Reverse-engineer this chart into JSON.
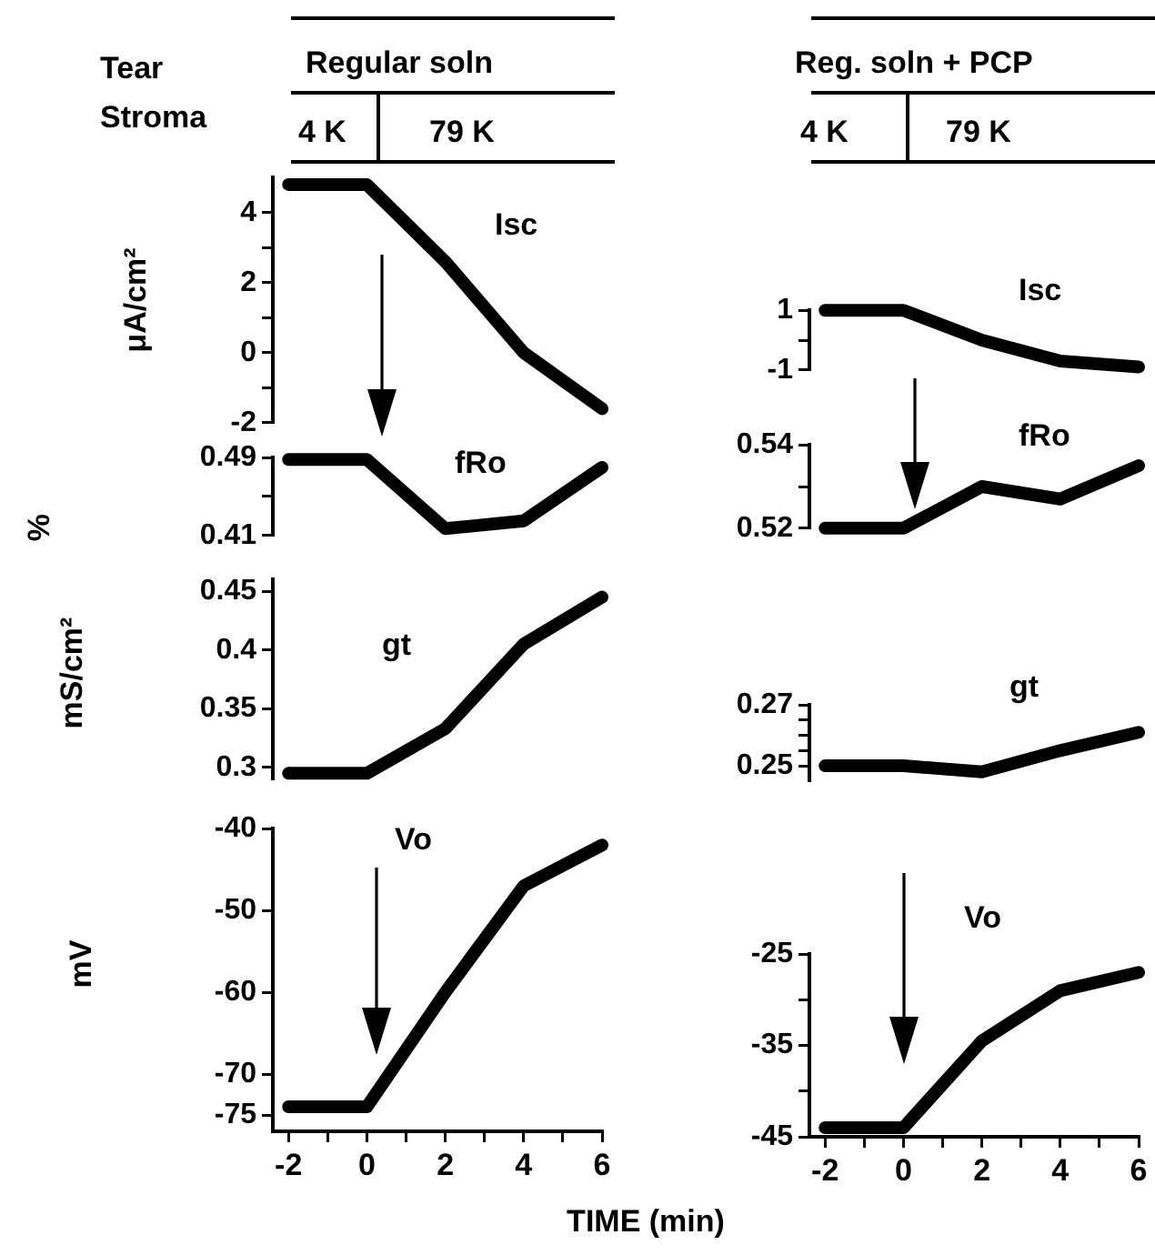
{
  "chart_data": [
    {
      "type": "line",
      "annotations": [
        "Tear",
        "Stroma",
        "Regular soln",
        "4 K",
        "79 K"
      ],
      "ylabel": "μA/cm²",
      "x": [
        -2,
        0,
        2,
        4,
        6
      ],
      "xlim": [
        -2.4,
        6
      ],
      "xticks": [
        -2,
        0,
        2,
        4,
        6
      ],
      "ylim": [
        -2,
        5
      ],
      "yticks": [
        4,
        {
          "value": 3,
          "label": null
        },
        2,
        {
          "value": 1,
          "label": null
        },
        0,
        {
          "value": -1,
          "label": null
        },
        -2
      ],
      "tick_labels": "y",
      "marker": "none",
      "line_style": "solid",
      "series": [
        {
          "name": "Isc",
          "color": "#000000",
          "values": [
            4.8,
            4.8,
            2.6,
            0,
            -1.6
          ]
        }
      ]
    },
    {
      "type": "line",
      "annotations": [
        "Reg. soln + PCP",
        "4 K",
        "79 K"
      ],
      "x": [
        -2,
        0,
        2,
        4,
        6
      ],
      "xlim": [
        -2.4,
        6
      ],
      "xticks": [
        -2,
        0,
        2,
        4,
        6
      ],
      "ylim": [
        -1,
        1
      ],
      "yticks": [
        1,
        {
          "value": 0,
          "label": null
        },
        -1
      ],
      "tick_labels": "y",
      "marker": "none",
      "line_style": "solid",
      "series": [
        {
          "name": "Isc",
          "color": "#000000",
          "values": [
            1,
            1,
            0,
            -0.7,
            -0.9
          ]
        }
      ]
    },
    {
      "type": "line",
      "ylabel": "%",
      "x": [
        -2,
        0,
        2,
        4,
        6
      ],
      "xlim": [
        -2.4,
        6
      ],
      "xticks": [
        -2,
        0,
        2,
        4,
        6
      ],
      "ylim": [
        0.41,
        0.49
      ],
      "yticks": [
        0.49,
        {
          "value": 0.45,
          "label": null
        },
        0.41
      ],
      "tick_labels": "y",
      "marker": "none",
      "line_style": "solid",
      "series": [
        {
          "name": "fRo",
          "color": "#000000",
          "values": [
            0.488,
            0.488,
            0.417,
            0.425,
            0.48
          ]
        }
      ]
    },
    {
      "type": "line",
      "x": [
        -2,
        0,
        2,
        4,
        6
      ],
      "xlim": [
        -2.4,
        6
      ],
      "xticks": [
        -2,
        0,
        2,
        4,
        6
      ],
      "ylim": [
        0.52,
        0.54
      ],
      "yticks": [
        0.54,
        {
          "value": 0.53,
          "label": null
        },
        0.52
      ],
      "tick_labels": "y",
      "marker": "none",
      "line_style": "solid",
      "series": [
        {
          "name": "fRo",
          "color": "#000000",
          "values": [
            0.52,
            0.52,
            0.53,
            0.527,
            0.535
          ]
        }
      ]
    },
    {
      "type": "line",
      "ylabel": "mS/cm²",
      "x": [
        -2,
        0,
        2,
        4,
        6
      ],
      "xlim": [
        -2.4,
        6
      ],
      "xticks": [
        -2,
        0,
        2,
        4,
        6
      ],
      "ylim": [
        0.29,
        0.46
      ],
      "yticks": [
        0.45,
        0.4,
        0.35,
        0.3
      ],
      "tick_labels": "y",
      "marker": "none",
      "line_style": "solid",
      "series": [
        {
          "name": "gt",
          "color": "#000000",
          "values": [
            0.295,
            0.295,
            0.333,
            0.405,
            0.445
          ]
        }
      ]
    },
    {
      "type": "line",
      "x": [
        -2,
        0,
        2,
        4,
        6
      ],
      "xlim": [
        -2.4,
        6
      ],
      "xticks": [
        -2,
        0,
        2,
        4,
        6
      ],
      "ylim": [
        0.245,
        0.27
      ],
      "yticks": [
        0.27,
        {
          "value": 0.265,
          "label": null
        },
        {
          "value": 0.26,
          "label": null
        },
        {
          "value": 0.255,
          "label": null
        },
        0.25
      ],
      "tick_labels": "y",
      "marker": "none",
      "line_style": "solid",
      "series": [
        {
          "name": "gt",
          "color": "#000000",
          "values": [
            0.25,
            0.25,
            0.248,
            0.255,
            0.261
          ]
        }
      ]
    },
    {
      "type": "line",
      "ylabel": "mV",
      "xlabel": "TIME (min)",
      "x": [
        -2,
        0,
        2,
        4,
        6
      ],
      "xlim": [
        -2.4,
        6
      ],
      "xticks": [
        -2,
        {
          "value": -1,
          "label": null
        },
        0,
        {
          "value": 1,
          "label": null
        },
        2,
        {
          "value": 3,
          "label": null
        },
        4,
        {
          "value": 5,
          "label": null
        },
        6
      ],
      "ylim": [
        -77,
        -40
      ],
      "yticks": [
        -40,
        -50,
        -60,
        -70,
        -75
      ],
      "marker": "none",
      "line_style": "solid",
      "series": [
        {
          "name": "Vo",
          "color": "#000000",
          "values": [
            -74,
            -74,
            -60,
            -47,
            -42
          ]
        }
      ]
    },
    {
      "type": "line",
      "x": [
        -2,
        0,
        2,
        4,
        6
      ],
      "xlim": [
        -2.4,
        6
      ],
      "xticks": [
        -2,
        {
          "value": -1,
          "label": null
        },
        0,
        {
          "value": 1,
          "label": null
        },
        2,
        {
          "value": 3,
          "label": null
        },
        4,
        {
          "value": 5,
          "label": null
        },
        6
      ],
      "ylim": [
        -45,
        -25
      ],
      "yticks": [
        -25,
        {
          "value": -30,
          "label": null
        },
        -35,
        {
          "value": -40,
          "label": null
        },
        -45
      ],
      "marker": "none",
      "line_style": "solid",
      "series": [
        {
          "name": "Vo",
          "color": "#000000",
          "values": [
            -44,
            -44,
            -34.5,
            -29,
            -27
          ]
        }
      ]
    }
  ]
}
